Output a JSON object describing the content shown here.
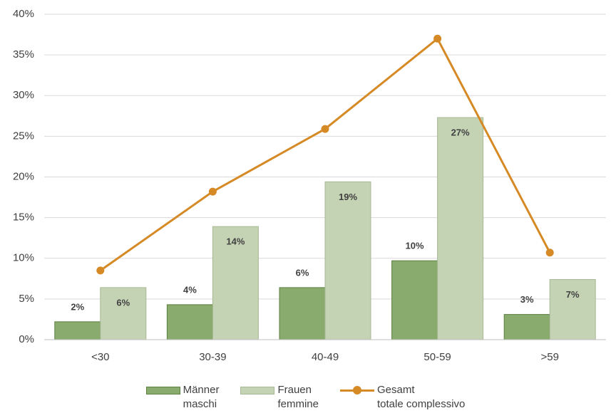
{
  "chart_data": {
    "type": "bar_line",
    "categories": [
      "<30",
      "30-39",
      "40-49",
      "50-59",
      ">59"
    ],
    "series": [
      {
        "name": "Männer\nmaschi",
        "type": "bar",
        "color": "#8aab6e",
        "values": [
          2.2,
          4.3,
          6.4,
          9.7,
          3.1
        ],
        "value_labels": [
          "2%",
          "4%",
          "6%",
          "10%",
          "3%"
        ]
      },
      {
        "name": "Frauen\nfemmine",
        "type": "bar",
        "color": "#c5d3b5",
        "values": [
          6.4,
          13.9,
          19.4,
          27.3,
          7.4
        ],
        "value_labels": [
          "6%",
          "14%",
          "19%",
          "27%",
          "7%"
        ]
      },
      {
        "name": "Gesamt\ntotale complessivo",
        "type": "line",
        "color": "#d68a26",
        "values": [
          8.5,
          18.2,
          25.9,
          37.0,
          10.7
        ]
      }
    ],
    "ylim": [
      0,
      40
    ],
    "yticks": [
      {
        "value": 0,
        "label": "0%"
      },
      {
        "value": 5,
        "label": "5%"
      },
      {
        "value": 10,
        "label": "10%"
      },
      {
        "value": 15,
        "label": "15%"
      },
      {
        "value": 20,
        "label": "20%"
      },
      {
        "value": 25,
        "label": "25%"
      },
      {
        "value": 30,
        "label": "30%"
      },
      {
        "value": 35,
        "label": "35%"
      },
      {
        "value": 40,
        "label": "40%"
      }
    ],
    "grid": true
  }
}
